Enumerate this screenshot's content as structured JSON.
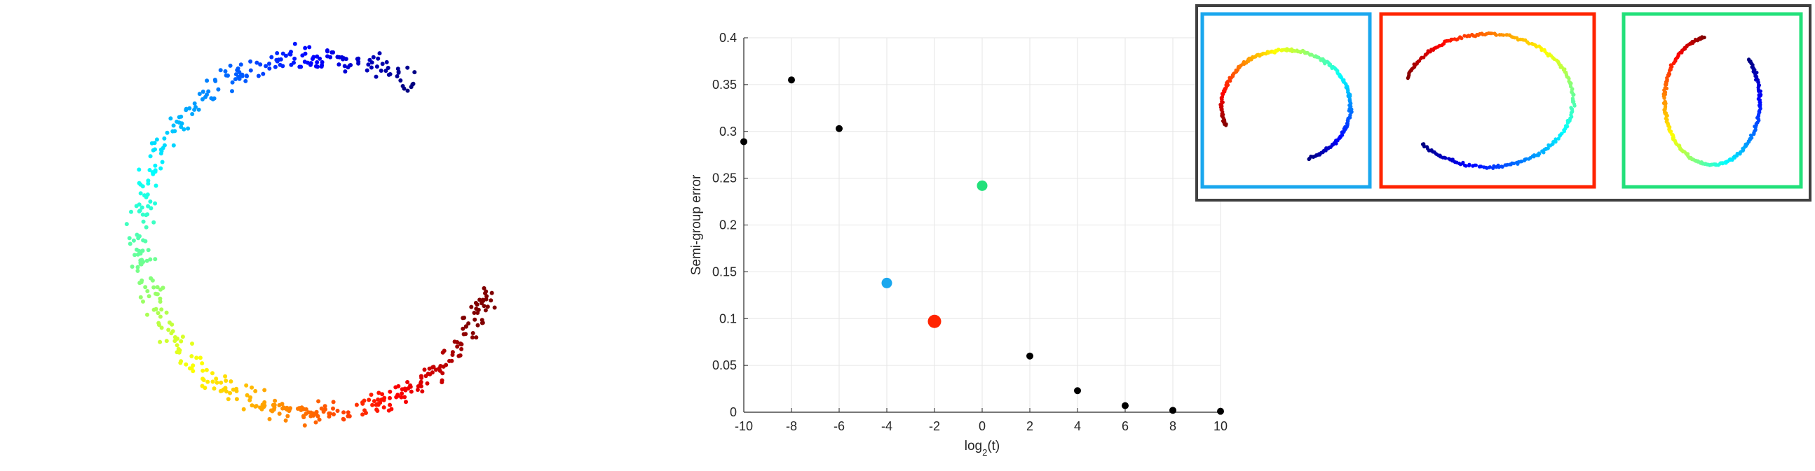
{
  "chart_data": [
    {
      "type": "scatter",
      "title": "",
      "description_colors": [
        "#00008f",
        "#0050ff",
        "#00dfff",
        "#80ff80",
        "#ffd000",
        "#ff5000",
        "#800000"
      ],
      "shape": "open-ring",
      "point_count": 520
    },
    {
      "type": "scatter",
      "title": "",
      "xlabel_base": "log",
      "xlabel_sub": "2",
      "xlabel_tail": "(t)",
      "ylabel": "Semi-group error",
      "xlim": [
        -10,
        10
      ],
      "ylim": [
        0,
        0.4
      ],
      "x_ticks": [
        -10,
        -8,
        -6,
        -4,
        -2,
        0,
        2,
        4,
        6,
        8,
        10
      ],
      "y_ticks": [
        0,
        0.05,
        0.1,
        0.15,
        0.2,
        0.25,
        0.3,
        0.35,
        0.4
      ],
      "x_tick_labels": [
        "-10",
        "-8",
        "-6",
        "-4",
        "-2",
        "0",
        "2",
        "4",
        "6",
        "8",
        "10"
      ],
      "y_tick_labels": [
        "0",
        "0.05",
        "0.1",
        "0.15",
        "0.2",
        "0.25",
        "0.3",
        "0.35",
        "0.4"
      ],
      "grid": true,
      "points": [
        {
          "x": -10,
          "y": 0.289,
          "color": "#000000",
          "size": "small"
        },
        {
          "x": -8,
          "y": 0.355,
          "color": "#000000",
          "size": "small"
        },
        {
          "x": -6,
          "y": 0.303,
          "color": "#000000",
          "size": "small"
        },
        {
          "x": -4,
          "y": 0.138,
          "color": "#1aa7ee",
          "size": "medium"
        },
        {
          "x": -2,
          "y": 0.097,
          "color": "#ff2400",
          "size": "large"
        },
        {
          "x": 0,
          "y": 0.242,
          "color": "#22e07a",
          "size": "medium"
        },
        {
          "x": 2,
          "y": 0.06,
          "color": "#000000",
          "size": "small"
        },
        {
          "x": 4,
          "y": 0.023,
          "color": "#000000",
          "size": "small"
        },
        {
          "x": 6,
          "y": 0.007,
          "color": "#000000",
          "size": "small"
        },
        {
          "x": 8,
          "y": 0.002,
          "color": "#000000",
          "size": "small"
        },
        {
          "x": 10,
          "y": 0.001,
          "color": "#000000",
          "size": "small"
        }
      ]
    },
    {
      "type": "scatter",
      "title": "",
      "insets": [
        {
          "frame_color": "#1aa7ee",
          "shape": "open-arc"
        },
        {
          "frame_color": "#ff2400",
          "shape": "closed-loop"
        },
        {
          "frame_color": "#22e07a",
          "shape": "tall-loop"
        }
      ],
      "outer_frame_color": "#404040"
    }
  ]
}
